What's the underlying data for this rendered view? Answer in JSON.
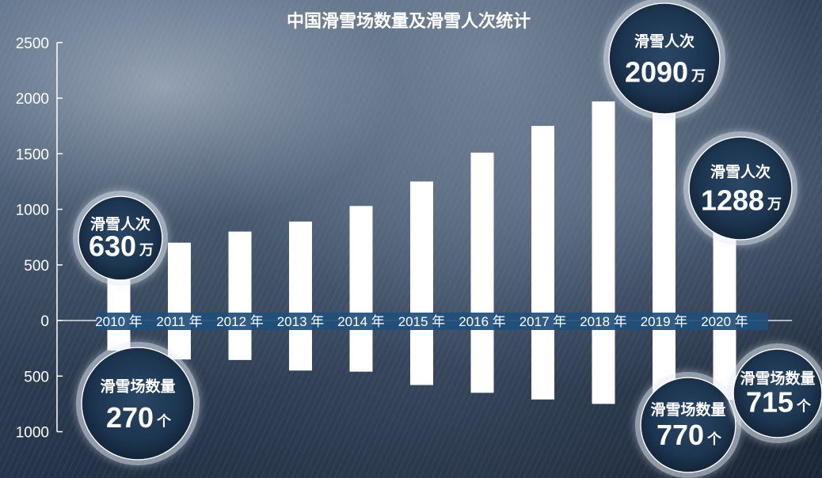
{
  "chart_data": {
    "type": "bar",
    "title": "中国滑雪场数量及滑雪人次统计",
    "categories": [
      "2010 年",
      "2011 年",
      "2012 年",
      "2013 年",
      "2014 年",
      "2015 年",
      "2016 年",
      "2017 年",
      "2018 年",
      "2019 年",
      "2020 年"
    ],
    "series": [
      {
        "name": "滑雪人次",
        "values": [
          630,
          700,
          800,
          890,
          1030,
          1250,
          1510,
          1750,
          1970,
          2090,
          1288
        ],
        "unit": "万"
      },
      {
        "name": "滑雪场数量",
        "values": [
          270,
          350,
          355,
          450,
          460,
          580,
          650,
          710,
          750,
          770,
          715
        ],
        "unit": "个"
      }
    ],
    "ylim": [
      -1000,
      2500
    ],
    "yticks": [
      {
        "value": 2500,
        "label": "2500"
      },
      {
        "value": 2000,
        "label": "2000"
      },
      {
        "value": 1500,
        "label": "1500"
      },
      {
        "value": 1000,
        "label": "1000"
      },
      {
        "value": 500,
        "label": "500"
      },
      {
        "value": 0,
        "label": "0"
      },
      {
        "value": -500,
        "label": "500"
      },
      {
        "value": -1000,
        "label": "1000"
      }
    ],
    "callouts": [
      {
        "year_index": 0,
        "series": 0,
        "label": "滑雪人次",
        "value": "630",
        "unit": "万"
      },
      {
        "year_index": 0,
        "series": 1,
        "label": "滑雪场数量",
        "value": "270",
        "unit": "个"
      },
      {
        "year_index": 9,
        "series": 0,
        "label": "滑雪人次",
        "value": "2090",
        "unit": "万"
      },
      {
        "year_index": 9,
        "series": 1,
        "label": "滑雪场数量",
        "value": "770",
        "unit": "个"
      },
      {
        "year_index": 10,
        "series": 0,
        "label": "滑雪人次",
        "value": "1288",
        "unit": "万"
      },
      {
        "year_index": 10,
        "series": 1,
        "label": "滑雪场数量",
        "value": "715",
        "unit": "个"
      }
    ],
    "colors": {
      "bar": "#ffffff",
      "label_band": "#1f4f7a",
      "bubble": "#1c3550",
      "bubble_glow": "#e8eef6"
    },
    "grid": false,
    "legend": "none"
  }
}
